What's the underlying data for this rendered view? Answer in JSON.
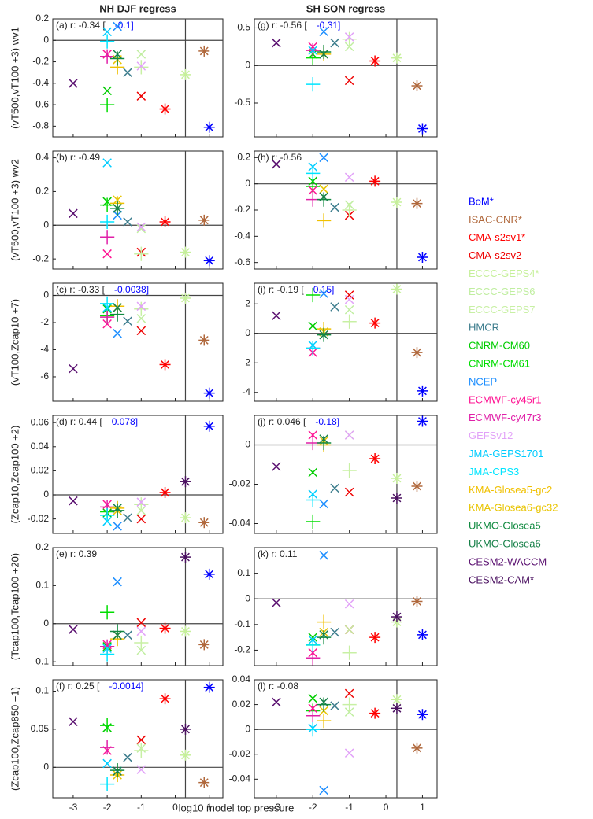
{
  "chart_data": {
    "type": "scatter",
    "column_titles": [
      "NH DJF  regress",
      "SH SON  regress"
    ],
    "xlabel": "log10 model top pressure",
    "xlim": [
      -3.6,
      1.4
    ],
    "xticks": [
      -3,
      -2,
      -1,
      0,
      1
    ],
    "hline": 0,
    "vline": 0.3,
    "ylabels": [
      "(vT500,vT100 +3) wv1",
      "(vT500,vT100 +3) wv2",
      "(vT100,Zcap10 +7)",
      "(Zcap10,Zcap100 +2)",
      "(Tcap100,Tcap100 +20)",
      "(Zcap100,Zcap850 +1)"
    ],
    "series": [
      {
        "name": "BoM*",
        "color": "#0000ff",
        "marker": "asterisk",
        "x": 1
      },
      {
        "name": "ISAC-CNR*",
        "color": "#b0683c",
        "marker": "asterisk",
        "x": 0.85
      },
      {
        "name": "CMA-s2sv1*",
        "color": "#ff0000",
        "marker": "asterisk",
        "x": -0.3
      },
      {
        "name": "CMA-s2sv2",
        "color": "#ee0000",
        "marker": "x",
        "x": -1
      },
      {
        "name": "ECCC-GEPS4*",
        "color": "#c6f09a",
        "marker": "asterisk",
        "x": 0.3
      },
      {
        "name": "ECCC-GEPS6",
        "color": "#c0eea0",
        "marker": "x",
        "x": -1
      },
      {
        "name": "ECCC-GEPS7",
        "color": "#c8f0a4",
        "marker": "plus",
        "x": -1
      },
      {
        "name": "HMCR",
        "color": "#3d7d8d",
        "marker": "x",
        "x": -1.4
      },
      {
        "name": "CNRM-CM60",
        "color": "#00cc00",
        "marker": "x",
        "x": -2
      },
      {
        "name": "CNRM-CM61",
        "color": "#00dd00",
        "marker": "plus",
        "x": -2
      },
      {
        "name": "NCEP",
        "color": "#1e8fff",
        "marker": "x",
        "x": -1.7
      },
      {
        "name": "ECMWF-cy45r1",
        "color": "#ff1493",
        "marker": "x",
        "x": -2
      },
      {
        "name": "ECMWF-cy47r3",
        "color": "#e020a8",
        "marker": "plus",
        "x": -2
      },
      {
        "name": "GEFSv12",
        "color": "#e2a2f8",
        "marker": "x",
        "x": -1
      },
      {
        "name": "JMA-GEPS1701",
        "color": "#00ccff",
        "marker": "x",
        "x": -2
      },
      {
        "name": "JMA-CPS3",
        "color": "#00e5ff",
        "marker": "plus",
        "x": -2
      },
      {
        "name": "KMA-Glosea5-gc2",
        "color": "#f0c000",
        "marker": "plus",
        "x": -1.7
      },
      {
        "name": "KMA-Glosea6-gc32",
        "color": "#e8c400",
        "marker": "x",
        "x": -1.7
      },
      {
        "name": "UKMO-Glosea5",
        "color": "#108a40",
        "marker": "plus",
        "x": -1.7
      },
      {
        "name": "UKMO-Glosea6",
        "color": "#168048",
        "marker": "x",
        "x": -1.7
      },
      {
        "name": "CESM2-WACCM",
        "color": "#5a1070",
        "marker": "x",
        "x": -3
      },
      {
        "name": "CESM2-CAM*",
        "color": "#4a1060",
        "marker": "asterisk",
        "x": 0.3
      }
    ],
    "panels": [
      {
        "label": "(a) r: -0.34 [",
        "bracket": "-0.1]",
        "ylim": [
          -0.9,
          0.2
        ],
        "yticks": [
          -0.8,
          -0.6,
          -0.4,
          -0.2,
          0,
          0.2
        ],
        "values": [
          -0.81,
          -0.1,
          -0.64,
          -0.52,
          -0.32,
          -0.13,
          -0.25,
          -0.3,
          -0.47,
          -0.6,
          0.13,
          -0.13,
          -0.15,
          -0.24,
          0.08,
          -0.01,
          -0.25,
          -0.18,
          -0.17,
          -0.13,
          -0.4,
          null
        ]
      },
      {
        "label": "(b) r: -0.49",
        "ylim": [
          -0.26,
          0.44
        ],
        "yticks": [
          -0.2,
          0,
          0.2,
          0.4
        ],
        "values": [
          -0.21,
          0.03,
          0.02,
          -0.16,
          -0.16,
          -0.02,
          -0.17,
          0.02,
          0.14,
          0.12,
          0.06,
          -0.17,
          -0.07,
          -0.01,
          0.37,
          0.02,
          0.13,
          0.15,
          0.1,
          0.1,
          0.07,
          null
        ]
      },
      {
        "label": "(c) r: -0.33 [",
        "bracket": "-0.0038]",
        "ylim": [
          -7.8,
          0.9
        ],
        "yticks": [
          -6,
          -4,
          -2,
          0
        ],
        "values": [
          -7.2,
          -3.3,
          -5.1,
          -2.6,
          -0.2,
          -1.7,
          -1.0,
          -1.9,
          -1.0,
          -1.5,
          -2.8,
          -2.1,
          -1.6,
          -0.8,
          -0.9,
          -0.6,
          -0.8,
          -0.9,
          -1.4,
          -0.9,
          -5.4,
          null
        ]
      },
      {
        "label": "(d) r: 0.44 [",
        "bracket": "0.078]",
        "ylim": [
          -0.032,
          0.066
        ],
        "yticks": [
          -0.02,
          0,
          0.02,
          0.04,
          0.06
        ],
        "values": [
          0.057,
          -0.023,
          0.002,
          -0.02,
          -0.019,
          -0.013,
          -0.008,
          -0.019,
          -0.015,
          -0.014,
          -0.026,
          -0.008,
          -0.01,
          -0.006,
          -0.022,
          -0.017,
          -0.011,
          -0.013,
          -0.013,
          -0.011,
          -0.005,
          0.011
        ]
      },
      {
        "label": "(e) r: 0.39",
        "ylim": [
          -0.11,
          0.2
        ],
        "yticks": [
          -0.1,
          0,
          0.1,
          0.2
        ],
        "values": [
          0.13,
          -0.055,
          -0.012,
          0.003,
          -0.02,
          -0.07,
          -0.05,
          -0.03,
          -0.06,
          0.03,
          0.11,
          -0.055,
          -0.06,
          -0.02,
          -0.065,
          -0.08,
          -0.04,
          -0.03,
          -0.02,
          -0.03,
          -0.015,
          0.175
        ]
      },
      {
        "label": "(f) r: 0.25 [",
        "bracket": "-0.0014]",
        "ylim": [
          -0.04,
          0.115
        ],
        "yticks": [
          0,
          0.05,
          0.1
        ],
        "values": [
          0.105,
          -0.02,
          0.09,
          0.036,
          0.016,
          0.025,
          0.022,
          0.013,
          0.052,
          0.055,
          -0.005,
          0.022,
          0.026,
          -0.003,
          0.005,
          -0.022,
          -0.01,
          -0.01,
          -0.004,
          -0.005,
          0.06,
          0.05
        ]
      },
      {
        "label": "(g) r: -0.56 [",
        "bracket": "-0.31]",
        "ylim": [
          -0.95,
          0.62
        ],
        "yticks": [
          -0.5,
          0,
          0.5
        ],
        "values": [
          -0.84,
          -0.27,
          0.06,
          -0.2,
          0.1,
          0.25,
          0.35,
          0.3,
          0.15,
          0.1,
          0.45,
          0.25,
          0.2,
          0.38,
          0.2,
          -0.25,
          0.15,
          0.15,
          0.18,
          0.15,
          0.3,
          null
        ]
      },
      {
        "label": "(h) r: -0.56",
        "ylim": [
          -0.65,
          0.25
        ],
        "yticks": [
          -0.6,
          -0.4,
          -0.2,
          0,
          0.2
        ],
        "values": [
          -0.56,
          -0.15,
          0.02,
          -0.24,
          -0.14,
          -0.16,
          -0.2,
          -0.18,
          0.02,
          -0.02,
          0.2,
          -0.05,
          -0.12,
          0.05,
          0.13,
          0.08,
          -0.28,
          -0.04,
          -0.12,
          -0.1,
          0.15,
          null
        ]
      },
      {
        "label": "(i) r: -0.19 [",
        "bracket": "0.15]",
        "ylim": [
          -4.6,
          3.4
        ],
        "yticks": [
          -4,
          -2,
          0,
          2
        ],
        "values": [
          -3.9,
          -1.3,
          0.7,
          2.6,
          3.0,
          1.6,
          0.8,
          1.8,
          0.5,
          2.6,
          2.7,
          -1.3,
          -1.0,
          2.3,
          -0.8,
          -1.0,
          0.3,
          0.1,
          -0.1,
          -0.1,
          1.2,
          null
        ]
      },
      {
        "label": "(j) r: 0.046 [",
        "bracket": "-0.18]",
        "ylim": [
          -0.045,
          0.015
        ],
        "yticks": [
          -0.04,
          -0.02,
          0
        ],
        "values": [
          0.012,
          -0.021,
          -0.007,
          -0.024,
          -0.017,
          0.005,
          -0.013,
          -0.022,
          -0.014,
          -0.039,
          -0.03,
          0.005,
          0.001,
          0.005,
          -0.025,
          -0.028,
          0,
          0.002,
          0.001,
          0.003,
          -0.011,
          -0.027
        ]
      },
      {
        "label": "(k) r: 0.11",
        "ylim": [
          -0.26,
          0.2
        ],
        "yticks": [
          -0.2,
          -0.1,
          0,
          0.1
        ],
        "values": [
          -0.14,
          -0.01,
          -0.15,
          -0.12,
          -0.09,
          -0.12,
          -0.21,
          -0.13,
          -0.15,
          -0.18,
          0.17,
          -0.21,
          -0.23,
          -0.02,
          -0.16,
          -0.18,
          -0.09,
          -0.13,
          -0.15,
          -0.14,
          -0.015,
          -0.07
        ]
      },
      {
        "label": "(l) r: -0.08",
        "ylim": [
          -0.055,
          0.04
        ],
        "yticks": [
          -0.04,
          -0.02,
          0,
          0.02,
          0.04
        ],
        "values": [
          0.012,
          -0.015,
          0.013,
          0.029,
          0.024,
          0.014,
          0.02,
          0.019,
          0.025,
          0.015,
          -0.049,
          0.017,
          0.011,
          -0.019,
          0.001,
          0,
          0.007,
          0.015,
          0.02,
          0.022,
          0.022,
          0.017
        ]
      }
    ]
  }
}
